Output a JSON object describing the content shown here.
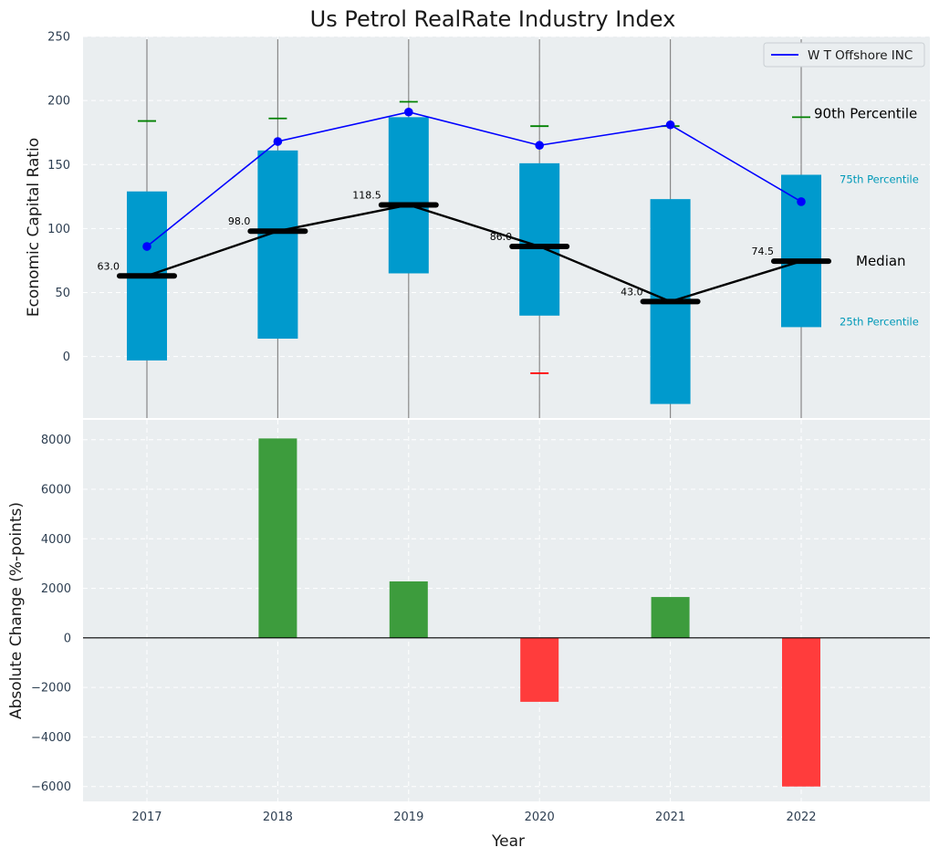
{
  "title": "Us Petrol RealRate Industry Index",
  "colors": {
    "background": "#eaeef0",
    "box": "#009acd",
    "whisker_cap_top": "#008000",
    "whisker_cap_low": "#ff0000",
    "whisker_line": "#888888",
    "median_line": "#000000",
    "company_line": "#0000ff",
    "positive_bar": "#3d9c3d",
    "negative_bar": "#ff3c3c",
    "pct_label_color": "#0099b8"
  },
  "chart_data": [
    {
      "type": "box-line",
      "ylabel": "Economic Capital Ratio",
      "ylim": [
        -48,
        250
      ],
      "yticks": [
        0,
        50,
        100,
        150,
        200,
        250
      ],
      "categories": [
        "2017",
        "2018",
        "2019",
        "2020",
        "2021",
        "2022"
      ],
      "p10": [
        null,
        null,
        null,
        -13,
        null,
        null
      ],
      "p25": [
        -3,
        14,
        65,
        32,
        -37,
        23
      ],
      "median": [
        63.0,
        98.0,
        118.5,
        86.0,
        43.0,
        74.5
      ],
      "median_labels": [
        "63.0",
        "98.0",
        "118.5",
        "86.0",
        "43.0",
        "74.5"
      ],
      "p75": [
        129,
        161,
        187,
        151,
        123,
        142
      ],
      "p90": [
        184,
        186,
        199,
        180,
        180,
        187
      ],
      "series": [
        {
          "name": "W T Offshore INC",
          "values": [
            86,
            168,
            191,
            165,
            181,
            121
          ]
        }
      ],
      "percentile_labels": {
        "p90": "90th Percentile",
        "p75": "75th Percentile",
        "median": "Median",
        "p25": "25th Percentile"
      },
      "legend_position": "top-right",
      "grid": true
    },
    {
      "type": "bar",
      "ylabel": "Absolute Change (%-points)",
      "xlabel": "Year",
      "ylim": [
        -6600,
        8800
      ],
      "yticks": [
        -6000,
        -4000,
        -2000,
        0,
        2000,
        4000,
        6000,
        8000
      ],
      "ytick_labels": [
        "−6000",
        "−4000",
        "−2000",
        "0",
        "2000",
        "4000",
        "6000",
        "8000"
      ],
      "categories": [
        "2017",
        "2018",
        "2019",
        "2020",
        "2021",
        "2022"
      ],
      "values": [
        0,
        8050,
        2280,
        -2580,
        1650,
        -6000
      ],
      "grid": true
    }
  ]
}
